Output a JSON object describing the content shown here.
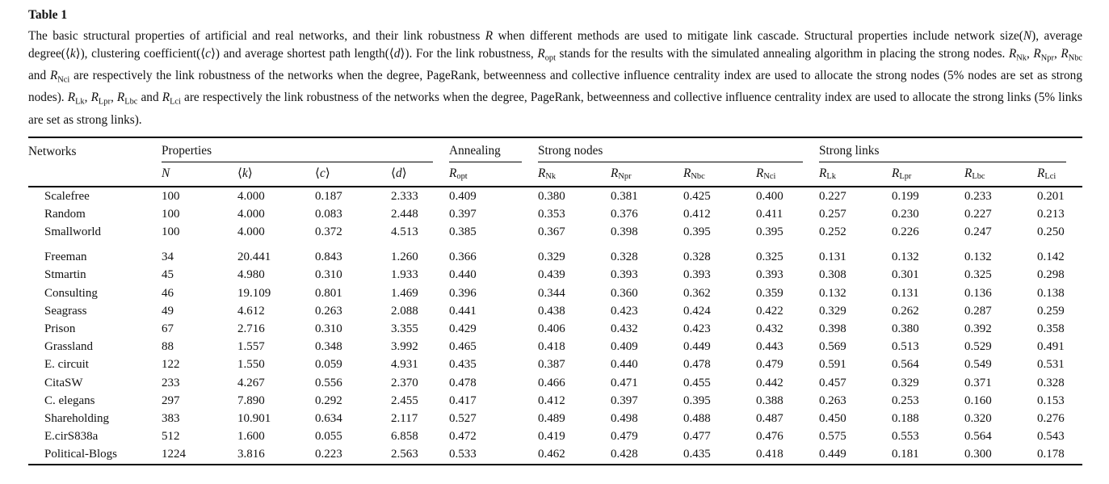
{
  "colors": {
    "background": "#ffffff",
    "text": "#111111",
    "rule": "#000000"
  },
  "table_label": "Table 1",
  "caption_segments": [
    [
      "The basic structural properties of artificial and real networks, and their link robustness ",
      "n"
    ],
    [
      "R",
      "i"
    ],
    [
      " when different methods are used to mitigate link cascade. Structural properties include network size(",
      "n"
    ],
    [
      "N",
      "i"
    ],
    [
      "), average degree(⟨",
      "n"
    ],
    [
      "k",
      "i"
    ],
    [
      "⟩), clustering coefficient(⟨",
      "n"
    ],
    [
      "c",
      "i"
    ],
    [
      "⟩) and average shortest path length(⟨",
      "n"
    ],
    [
      "d",
      "i"
    ],
    [
      "⟩). For the link robustness, ",
      "n"
    ],
    [
      "R",
      "i"
    ],
    [
      "opt",
      "sub"
    ],
    [
      " stands for the results with the simulated annealing algorithm in placing the strong nodes. ",
      "n"
    ],
    [
      "R",
      "i"
    ],
    [
      "Nk",
      "sub"
    ],
    [
      ", ",
      "n"
    ],
    [
      "R",
      "i"
    ],
    [
      "Npr",
      "sub"
    ],
    [
      ", ",
      "n"
    ],
    [
      "R",
      "i"
    ],
    [
      "Nbc",
      "sub"
    ],
    [
      " and ",
      "n"
    ],
    [
      "R",
      "i"
    ],
    [
      "Nci",
      "sub"
    ],
    [
      " are respectively the link robustness of the networks when the degree, PageRank, betweenness and collective influence centrality index are used to allocate the strong nodes (5% nodes are set as strong nodes). ",
      "n"
    ],
    [
      "R",
      "i"
    ],
    [
      "Lk",
      "sub"
    ],
    [
      ", ",
      "n"
    ],
    [
      "R",
      "i"
    ],
    [
      "Lpr",
      "sub"
    ],
    [
      ", ",
      "n"
    ],
    [
      "R",
      "i"
    ],
    [
      "Lbc",
      "sub"
    ],
    [
      " and ",
      "n"
    ],
    [
      "R",
      "i"
    ],
    [
      "Lci",
      "sub"
    ],
    [
      " are respectively the link robustness of the networks when the degree, PageRank, betweenness and collective influence centrality index are used to allocate the strong links (5% links are set as strong links).",
      "n"
    ]
  ],
  "table": {
    "group_headers": [
      {
        "label": "Networks",
        "span": 1,
        "underline": false
      },
      {
        "label": "Properties",
        "span": 4,
        "underline": true
      },
      {
        "label": "Annealing",
        "span": 1,
        "underline": true
      },
      {
        "label": "Strong nodes",
        "span": 4,
        "underline": true
      },
      {
        "label": "Strong links",
        "span": 4,
        "underline": true
      }
    ],
    "sub_headers": [
      {
        "segments": []
      },
      {
        "segments": [
          [
            "N",
            "i"
          ]
        ]
      },
      {
        "segments": [
          [
            "⟨",
            "n"
          ],
          [
            "k",
            "i"
          ],
          [
            "⟩",
            "n"
          ]
        ]
      },
      {
        "segments": [
          [
            "⟨",
            "n"
          ],
          [
            "c",
            "i"
          ],
          [
            "⟩",
            "n"
          ]
        ]
      },
      {
        "segments": [
          [
            "⟨",
            "n"
          ],
          [
            "d",
            "i"
          ],
          [
            "⟩",
            "n"
          ]
        ]
      },
      {
        "segments": [
          [
            "R",
            "i"
          ],
          [
            "opt",
            "sub"
          ]
        ]
      },
      {
        "segments": [
          [
            "R",
            "i"
          ],
          [
            "Nk",
            "sub"
          ]
        ]
      },
      {
        "segments": [
          [
            "R",
            "i"
          ],
          [
            "Npr",
            "sub"
          ]
        ]
      },
      {
        "segments": [
          [
            "R",
            "i"
          ],
          [
            "Nbc",
            "sub"
          ]
        ]
      },
      {
        "segments": [
          [
            "R",
            "i"
          ],
          [
            "Nci",
            "sub"
          ]
        ]
      },
      {
        "segments": [
          [
            "R",
            "i"
          ],
          [
            "Lk",
            "sub"
          ]
        ]
      },
      {
        "segments": [
          [
            "R",
            "i"
          ],
          [
            "Lpr",
            "sub"
          ]
        ]
      },
      {
        "segments": [
          [
            "R",
            "i"
          ],
          [
            "Lbc",
            "sub"
          ]
        ]
      },
      {
        "segments": [
          [
            "R",
            "i"
          ],
          [
            "Lci",
            "sub"
          ]
        ]
      }
    ],
    "row_groups": [
      {
        "rows": [
          {
            "name": "Scalefree",
            "values": [
              "100",
              "4.000",
              "0.187",
              "2.333",
              "0.409",
              "0.380",
              "0.381",
              "0.425",
              "0.400",
              "0.227",
              "0.199",
              "0.233",
              "0.201"
            ]
          },
          {
            "name": "Random",
            "values": [
              "100",
              "4.000",
              "0.083",
              "2.448",
              "0.397",
              "0.353",
              "0.376",
              "0.412",
              "0.411",
              "0.257",
              "0.230",
              "0.227",
              "0.213"
            ]
          },
          {
            "name": "Smallworld",
            "values": [
              "100",
              "4.000",
              "0.372",
              "4.513",
              "0.385",
              "0.367",
              "0.398",
              "0.395",
              "0.395",
              "0.252",
              "0.226",
              "0.247",
              "0.250"
            ]
          }
        ]
      },
      {
        "rows": [
          {
            "name": "Freeman",
            "values": [
              "34",
              "20.441",
              "0.843",
              "1.260",
              "0.366",
              "0.329",
              "0.328",
              "0.328",
              "0.325",
              "0.131",
              "0.132",
              "0.132",
              "0.142"
            ]
          },
          {
            "name": "Stmartin",
            "values": [
              "45",
              "4.980",
              "0.310",
              "1.933",
              "0.440",
              "0.439",
              "0.393",
              "0.393",
              "0.393",
              "0.308",
              "0.301",
              "0.325",
              "0.298"
            ]
          },
          {
            "name": "Consulting",
            "values": [
              "46",
              "19.109",
              "0.801",
              "1.469",
              "0.396",
              "0.344",
              "0.360",
              "0.362",
              "0.359",
              "0.132",
              "0.131",
              "0.136",
              "0.138"
            ]
          },
          {
            "name": "Seagrass",
            "values": [
              "49",
              "4.612",
              "0.263",
              "2.088",
              "0.441",
              "0.438",
              "0.423",
              "0.424",
              "0.422",
              "0.329",
              "0.262",
              "0.287",
              "0.259"
            ]
          },
          {
            "name": "Prison",
            "values": [
              "67",
              "2.716",
              "0.310",
              "3.355",
              "0.429",
              "0.406",
              "0.432",
              "0.423",
              "0.432",
              "0.398",
              "0.380",
              "0.392",
              "0.358"
            ]
          },
          {
            "name": "Grassland",
            "values": [
              "88",
              "1.557",
              "0.348",
              "3.992",
              "0.465",
              "0.418",
              "0.409",
              "0.449",
              "0.443",
              "0.569",
              "0.513",
              "0.529",
              "0.491"
            ]
          },
          {
            "name": "E. circuit",
            "values": [
              "122",
              "1.550",
              "0.059",
              "4.931",
              "0.435",
              "0.387",
              "0.440",
              "0.478",
              "0.479",
              "0.591",
              "0.564",
              "0.549",
              "0.531"
            ]
          },
          {
            "name": "CitaSW",
            "values": [
              "233",
              "4.267",
              "0.556",
              "2.370",
              "0.478",
              "0.466",
              "0.471",
              "0.455",
              "0.442",
              "0.457",
              "0.329",
              "0.371",
              "0.328"
            ]
          },
          {
            "name": "C. elegans",
            "values": [
              "297",
              "7.890",
              "0.292",
              "2.455",
              "0.417",
              "0.412",
              "0.397",
              "0.395",
              "0.388",
              "0.263",
              "0.253",
              "0.160",
              "0.153"
            ]
          },
          {
            "name": "Shareholding",
            "values": [
              "383",
              "10.901",
              "0.634",
              "2.117",
              "0.527",
              "0.489",
              "0.498",
              "0.488",
              "0.487",
              "0.450",
              "0.188",
              "0.320",
              "0.276"
            ]
          },
          {
            "name": "E.cirS838a",
            "values": [
              "512",
              "1.600",
              "0.055",
              "6.858",
              "0.472",
              "0.419",
              "0.479",
              "0.477",
              "0.476",
              "0.575",
              "0.553",
              "0.564",
              "0.543"
            ]
          },
          {
            "name": "Political-Blogs",
            "values": [
              "1224",
              "3.816",
              "0.223",
              "2.563",
              "0.533",
              "0.462",
              "0.428",
              "0.435",
              "0.418",
              "0.449",
              "0.181",
              "0.300",
              "0.178"
            ]
          }
        ]
      }
    ]
  }
}
